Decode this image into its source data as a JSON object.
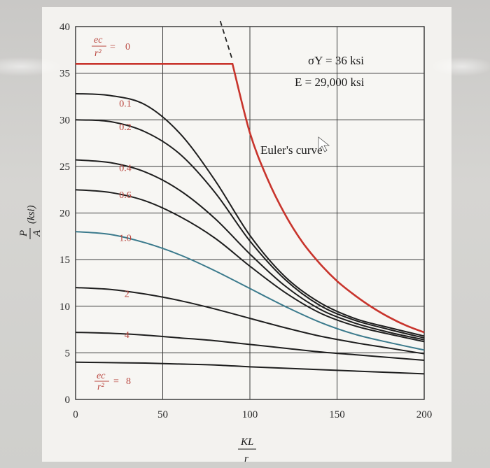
{
  "chart_data": {
    "type": "line",
    "x_range": [
      0,
      200
    ],
    "y_range": [
      0,
      40
    ],
    "x_ticks": [
      "0",
      "50",
      "100",
      "150",
      "200"
    ],
    "y_ticks": [
      "0",
      "5",
      "10",
      "15",
      "20",
      "25",
      "30",
      "35",
      "40"
    ],
    "x_tick_values": [
      0,
      50,
      100,
      150,
      200
    ],
    "y_tick_values": [
      0,
      5,
      10,
      15,
      20,
      25,
      30,
      35,
      40
    ],
    "grid": true,
    "annotation_lines": [
      "σY = 36 ksi",
      "E = 29,000 ksi"
    ],
    "euler_label": "Euler's curve",
    "colors": {
      "ec0": "#c8342c",
      "euler": "#c8342c",
      "ec1": "#3b7a8c",
      "other": "#1e1e1e",
      "label": "#b9463e"
    },
    "series": [
      {
        "name": "0",
        "x": [
          0,
          90,
          100,
          110,
          120,
          130,
          140,
          150,
          160,
          170,
          180,
          190,
          200
        ],
        "y": [
          36,
          36,
          28.6,
          23.7,
          19.9,
          16.9,
          14.6,
          12.7,
          11.2,
          9.9,
          8.8,
          7.9,
          7.2
        ]
      },
      {
        "name": "0.1",
        "x": [
          0,
          20,
          40,
          60,
          80,
          100,
          120,
          140,
          160,
          180,
          200
        ],
        "y": [
          32.8,
          32.6,
          31.6,
          28.5,
          23.5,
          17.6,
          13.2,
          10.4,
          8.7,
          7.7,
          6.8
        ]
      },
      {
        "name": "0.2",
        "x": [
          0,
          20,
          40,
          60,
          80,
          100,
          120,
          140,
          160,
          180,
          200
        ],
        "y": [
          30.0,
          29.8,
          28.7,
          26.3,
          22.2,
          17.0,
          12.9,
          10.1,
          8.5,
          7.5,
          6.6
        ]
      },
      {
        "name": "0.4",
        "x": [
          0,
          20,
          40,
          60,
          80,
          100,
          120,
          140,
          160,
          180,
          200
        ],
        "y": [
          25.7,
          25.4,
          24.4,
          22.4,
          19.4,
          15.6,
          12.2,
          9.7,
          8.2,
          7.2,
          6.4
        ]
      },
      {
        "name": "0.6",
        "x": [
          0,
          20,
          40,
          60,
          80,
          100,
          120,
          140,
          160,
          180,
          200
        ],
        "y": [
          22.5,
          22.2,
          21.3,
          19.6,
          17.3,
          14.3,
          11.5,
          9.3,
          7.9,
          7.0,
          6.2
        ]
      },
      {
        "name": "1.0",
        "x": [
          0,
          20,
          40,
          60,
          80,
          100,
          120,
          140,
          160,
          180,
          200
        ],
        "y": [
          18.0,
          17.7,
          16.8,
          15.5,
          13.8,
          11.9,
          10.0,
          8.3,
          7.0,
          6.1,
          5.3
        ]
      },
      {
        "name": "2",
        "x": [
          0,
          20,
          40,
          60,
          80,
          100,
          120,
          140,
          160,
          180,
          200
        ],
        "y": [
          12.0,
          11.8,
          11.3,
          10.6,
          9.7,
          8.7,
          7.7,
          6.8,
          6.1,
          5.5,
          4.9
        ]
      },
      {
        "name": "4",
        "x": [
          0,
          20,
          40,
          60,
          80,
          100,
          120,
          140,
          160,
          180,
          200
        ],
        "y": [
          7.2,
          7.1,
          6.9,
          6.6,
          6.3,
          5.9,
          5.5,
          5.1,
          4.8,
          4.5,
          4.2
        ]
      },
      {
        "name": "8",
        "x": [
          0,
          20,
          40,
          60,
          80,
          100,
          120,
          140,
          160,
          180,
          200
        ],
        "y": [
          4.0,
          3.95,
          3.9,
          3.8,
          3.7,
          3.5,
          3.35,
          3.2,
          3.05,
          2.9,
          2.75
        ]
      }
    ]
  }
}
